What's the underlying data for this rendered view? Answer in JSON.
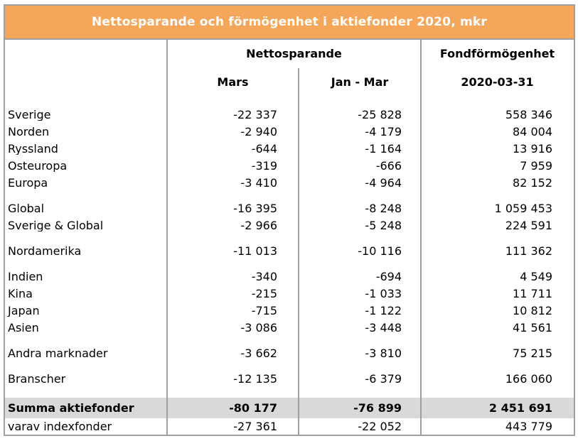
{
  "title": "Nettosparande och förmögenhet i aktiefonder 2020, mkr",
  "colors": {
    "accent_orange": "#f4a75b",
    "border_gray": "#a0a0a0",
    "summary_row_bg": "#d9d9d9",
    "title_text": "#ffffff",
    "body_text": "#000000"
  },
  "chart_data": {
    "type": "table",
    "title": "Nettosparande och förmögenhet i aktiefonder 2020, mkr",
    "unit": "mkr",
    "column_groups": {
      "netsaving": "Nettosparande",
      "fund_wealth": "Fondförmögenhet"
    },
    "columns": {
      "mars": "Mars",
      "janmar": "Jan - Mar",
      "date": "2020-03-31"
    },
    "rows": [
      {
        "label": "Sverige",
        "mars": "-22 337",
        "janmar": "-25 828",
        "fund": "558 346"
      },
      {
        "label": "Norden",
        "mars": "-2 940",
        "janmar": "-4 179",
        "fund": "84 004"
      },
      {
        "label": "Ryssland",
        "mars": "-644",
        "janmar": "-1 164",
        "fund": "13 916"
      },
      {
        "label": "Östeuropa",
        "mars": "-319",
        "janmar": "-666",
        "fund": "7 959"
      },
      {
        "label": "Europa",
        "mars": "-3 410",
        "janmar": "-4 964",
        "fund": "82 152"
      },
      {
        "label": "Global",
        "mars": "-16 395",
        "janmar": "-8 248",
        "fund": "1 059 453"
      },
      {
        "label": "Sverige & Global",
        "mars": "-2 966",
        "janmar": "-5 248",
        "fund": "224 591"
      },
      {
        "label": "Nordamerika",
        "mars": "-11 013",
        "janmar": "-10 116",
        "fund": "111 362"
      },
      {
        "label": "Indien",
        "mars": "-340",
        "janmar": "-694",
        "fund": "4 549"
      },
      {
        "label": "Kina",
        "mars": "-215",
        "janmar": "-1 033",
        "fund": "11 711"
      },
      {
        "label": "Japan",
        "mars": "-715",
        "janmar": "-1 122",
        "fund": "10 812"
      },
      {
        "label": "Asien",
        "mars": "-3 086",
        "janmar": "-3 448",
        "fund": "41 561"
      },
      {
        "label": "Andra marknader",
        "mars": "-3 662",
        "janmar": "-3 810",
        "fund": "75 215"
      },
      {
        "label": "Branscher",
        "mars": "-12 135",
        "janmar": "-6 379",
        "fund": "166 060"
      }
    ],
    "summary": {
      "label": "Summa aktiefonder",
      "mars": "-80 177",
      "janmar": "-76 899",
      "fund": "2 451 691"
    },
    "footer": {
      "label": "varav indexfonder",
      "mars": "-27 361",
      "janmar": "-22 052",
      "fund": "443 779"
    }
  }
}
